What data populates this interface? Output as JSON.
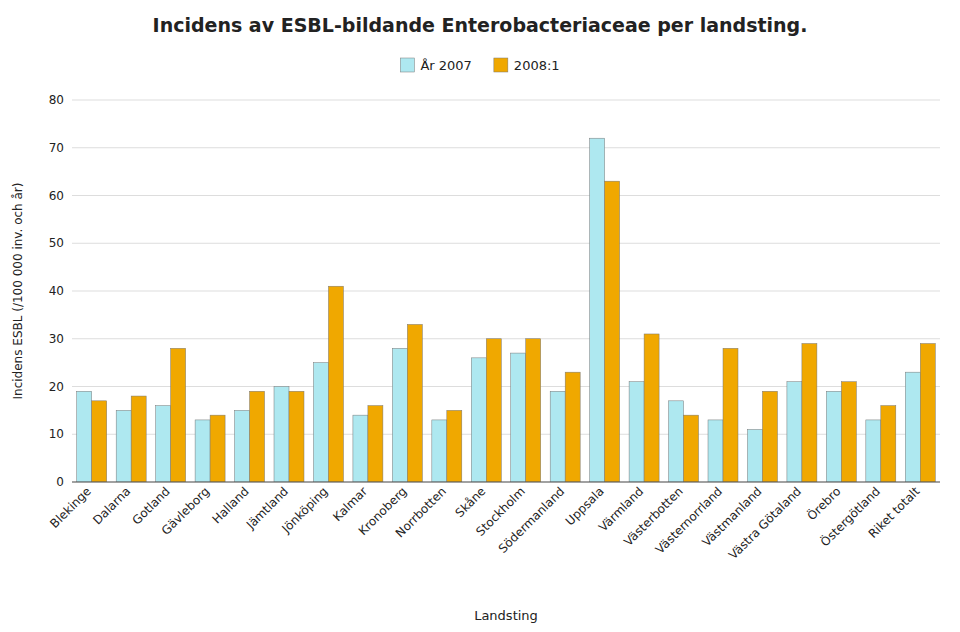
{
  "chart_data": {
    "type": "bar",
    "title": "Incidens av ESBL-bildande Enterobacteriaceae per landsting.",
    "xlabel": "Landsting",
    "ylabel": "Incidens ESBL (/100 000 inv. och år)",
    "categories": [
      "Blekinge",
      "Dalarna",
      "Gotland",
      "Gävleborg",
      "Halland",
      "Jämtland",
      "Jönköping",
      "Kalmar",
      "Kronoberg",
      "Norrbotten",
      "Skåne",
      "Stockholm",
      "Södermanland",
      "Uppsala",
      "Värmland",
      "Västerbotten",
      "Västernorrland",
      "Västmanland",
      "Västra Götaland",
      "Örebro",
      "Östergötland",
      "Riket totalt"
    ],
    "series": [
      {
        "name": "År 2007",
        "color": "#aee8f0",
        "values": [
          19,
          15,
          16,
          13,
          15,
          20,
          25,
          14,
          28,
          13,
          26,
          27,
          19,
          72,
          21,
          17,
          13,
          11,
          21,
          19,
          13,
          23
        ]
      },
      {
        "name": "2008:1",
        "color": "#f0a800",
        "values": [
          17,
          18,
          28,
          14,
          19,
          19,
          41,
          16,
          33,
          15,
          30,
          30,
          23,
          63,
          31,
          14,
          28,
          19,
          29,
          21,
          16,
          29
        ]
      }
    ],
    "ylim": [
      0,
      80
    ],
    "yticks": [
      0,
      10,
      20,
      30,
      40,
      50,
      60,
      70,
      80
    ],
    "grid": true,
    "legend": "top"
  }
}
